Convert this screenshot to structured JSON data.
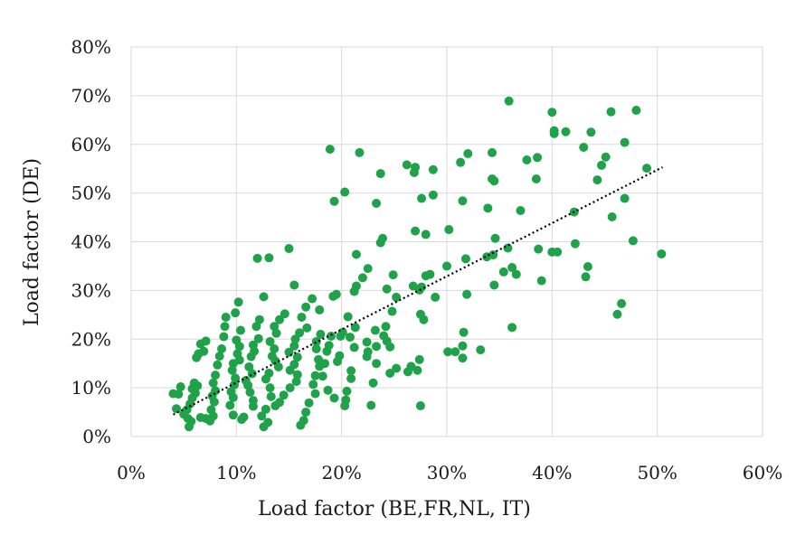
{
  "chart_data": {
    "type": "scatter",
    "title": "",
    "xlabel": "Load factor (BE,FR,NL, IT)",
    "ylabel": "Load factor (DE)",
    "xlim": [
      0,
      0.6
    ],
    "ylim": [
      0,
      0.8
    ],
    "x_ticks": [
      "0%",
      "10%",
      "20%",
      "30%",
      "40%",
      "50%",
      "60%"
    ],
    "y_ticks": [
      "0%",
      "10%",
      "20%",
      "30%",
      "40%",
      "50%",
      "60%",
      "70%",
      "80%"
    ],
    "grid": true,
    "marker_color": "#1fa24a",
    "trendline": {
      "style": "dotted",
      "color": "#000000",
      "x": [
        0.04,
        0.505
      ],
      "y": [
        0.045,
        0.553
      ]
    },
    "points": [
      [
        0.359,
        0.689
      ],
      [
        0.4,
        0.666
      ],
      [
        0.456,
        0.667
      ],
      [
        0.48,
        0.67
      ],
      [
        0.402,
        0.628
      ],
      [
        0.402,
        0.622
      ],
      [
        0.413,
        0.626
      ],
      [
        0.437,
        0.625
      ],
      [
        0.43,
        0.594
      ],
      [
        0.469,
        0.604
      ],
      [
        0.451,
        0.574
      ],
      [
        0.447,
        0.557
      ],
      [
        0.443,
        0.527
      ],
      [
        0.49,
        0.551
      ],
      [
        0.376,
        0.568
      ],
      [
        0.386,
        0.573
      ],
      [
        0.385,
        0.529
      ],
      [
        0.343,
        0.583
      ],
      [
        0.32,
        0.581
      ],
      [
        0.313,
        0.563
      ],
      [
        0.287,
        0.548
      ],
      [
        0.27,
        0.553
      ],
      [
        0.262,
        0.558
      ],
      [
        0.269,
        0.542
      ],
      [
        0.217,
        0.583
      ],
      [
        0.189,
        0.59
      ],
      [
        0.237,
        0.54
      ],
      [
        0.343,
        0.529
      ],
      [
        0.345,
        0.525
      ],
      [
        0.287,
        0.496
      ],
      [
        0.276,
        0.489
      ],
      [
        0.203,
        0.502
      ],
      [
        0.193,
        0.483
      ],
      [
        0.233,
        0.479
      ],
      [
        0.315,
        0.484
      ],
      [
        0.339,
        0.469
      ],
      [
        0.37,
        0.464
      ],
      [
        0.421,
        0.461
      ],
      [
        0.457,
        0.451
      ],
      [
        0.469,
        0.489
      ],
      [
        0.302,
        0.425
      ],
      [
        0.27,
        0.422
      ],
      [
        0.28,
        0.415
      ],
      [
        0.237,
        0.398
      ],
      [
        0.239,
        0.407
      ],
      [
        0.214,
        0.374
      ],
      [
        0.346,
        0.407
      ],
      [
        0.358,
        0.387
      ],
      [
        0.387,
        0.385
      ],
      [
        0.4,
        0.379
      ],
      [
        0.405,
        0.379
      ],
      [
        0.422,
        0.396
      ],
      [
        0.434,
        0.349
      ],
      [
        0.432,
        0.328
      ],
      [
        0.477,
        0.402
      ],
      [
        0.504,
        0.375
      ],
      [
        0.466,
        0.273
      ],
      [
        0.462,
        0.251
      ],
      [
        0.362,
        0.347
      ],
      [
        0.366,
        0.333
      ],
      [
        0.354,
        0.338
      ],
      [
        0.344,
        0.373
      ],
      [
        0.338,
        0.369
      ],
      [
        0.345,
        0.311
      ],
      [
        0.39,
        0.32
      ],
      [
        0.3,
        0.35
      ],
      [
        0.318,
        0.365
      ],
      [
        0.319,
        0.292
      ],
      [
        0.284,
        0.333
      ],
      [
        0.28,
        0.33
      ],
      [
        0.276,
        0.307
      ],
      [
        0.274,
        0.301
      ],
      [
        0.268,
        0.309
      ],
      [
        0.289,
        0.286
      ],
      [
        0.249,
        0.332
      ],
      [
        0.252,
        0.286
      ],
      [
        0.243,
        0.303
      ],
      [
        0.225,
        0.345
      ],
      [
        0.22,
        0.326
      ],
      [
        0.214,
        0.309
      ],
      [
        0.212,
        0.298
      ],
      [
        0.195,
        0.292
      ],
      [
        0.192,
        0.288
      ],
      [
        0.15,
        0.386
      ],
      [
        0.12,
        0.366
      ],
      [
        0.131,
        0.367
      ],
      [
        0.155,
        0.311
      ],
      [
        0.126,
        0.287
      ],
      [
        0.362,
        0.224
      ],
      [
        0.316,
        0.214
      ],
      [
        0.332,
        0.178
      ],
      [
        0.315,
        0.186
      ],
      [
        0.308,
        0.174
      ],
      [
        0.315,
        0.161
      ],
      [
        0.301,
        0.174
      ],
      [
        0.278,
        0.24
      ],
      [
        0.275,
        0.251
      ],
      [
        0.274,
        0.158
      ],
      [
        0.266,
        0.144
      ],
      [
        0.263,
        0.133
      ],
      [
        0.272,
        0.136
      ],
      [
        0.275,
        0.063
      ],
      [
        0.248,
        0.257
      ],
      [
        0.242,
        0.226
      ],
      [
        0.232,
        0.218
      ],
      [
        0.224,
        0.194
      ],
      [
        0.225,
        0.174
      ],
      [
        0.224,
        0.164
      ],
      [
        0.233,
        0.185
      ],
      [
        0.24,
        0.207
      ],
      [
        0.243,
        0.196
      ],
      [
        0.246,
        0.184
      ],
      [
        0.252,
        0.14
      ],
      [
        0.246,
        0.13
      ],
      [
        0.233,
        0.15
      ],
      [
        0.23,
        0.11
      ],
      [
        0.228,
        0.064
      ],
      [
        0.206,
        0.246
      ],
      [
        0.213,
        0.224
      ],
      [
        0.201,
        0.214
      ],
      [
        0.199,
        0.206
      ],
      [
        0.208,
        0.204
      ],
      [
        0.212,
        0.183
      ],
      [
        0.198,
        0.166
      ],
      [
        0.196,
        0.154
      ],
      [
        0.209,
        0.135
      ],
      [
        0.209,
        0.119
      ],
      [
        0.205,
        0.093
      ],
      [
        0.204,
        0.075
      ],
      [
        0.203,
        0.063
      ],
      [
        0.193,
        0.079
      ],
      [
        0.187,
        0.095
      ],
      [
        0.182,
        0.124
      ],
      [
        0.184,
        0.15
      ],
      [
        0.186,
        0.175
      ],
      [
        0.188,
        0.187
      ],
      [
        0.19,
        0.206
      ],
      [
        0.18,
        0.21
      ],
      [
        0.176,
        0.195
      ],
      [
        0.176,
        0.18
      ],
      [
        0.178,
        0.158
      ],
      [
        0.179,
        0.144
      ],
      [
        0.175,
        0.125
      ],
      [
        0.173,
        0.107
      ],
      [
        0.175,
        0.088
      ],
      [
        0.169,
        0.069
      ],
      [
        0.166,
        0.05
      ],
      [
        0.164,
        0.033
      ],
      [
        0.161,
        0.023
      ],
      [
        0.179,
        0.26
      ],
      [
        0.172,
        0.283
      ],
      [
        0.166,
        0.266
      ],
      [
        0.162,
        0.245
      ],
      [
        0.167,
        0.223
      ],
      [
        0.16,
        0.213
      ],
      [
        0.156,
        0.2
      ],
      [
        0.155,
        0.186
      ],
      [
        0.15,
        0.173
      ],
      [
        0.158,
        0.163
      ],
      [
        0.155,
        0.148
      ],
      [
        0.151,
        0.136
      ],
      [
        0.158,
        0.127
      ],
      [
        0.157,
        0.113
      ],
      [
        0.151,
        0.1
      ],
      [
        0.145,
        0.085
      ],
      [
        0.141,
        0.07
      ],
      [
        0.137,
        0.063
      ],
      [
        0.146,
        0.252
      ],
      [
        0.141,
        0.24
      ],
      [
        0.136,
        0.226
      ],
      [
        0.138,
        0.212
      ],
      [
        0.132,
        0.195
      ],
      [
        0.136,
        0.18
      ],
      [
        0.134,
        0.165
      ],
      [
        0.137,
        0.155
      ],
      [
        0.14,
        0.143
      ],
      [
        0.131,
        0.13
      ],
      [
        0.128,
        0.118
      ],
      [
        0.132,
        0.1
      ],
      [
        0.133,
        0.082
      ],
      [
        0.128,
        0.056
      ],
      [
        0.124,
        0.042
      ],
      [
        0.13,
        0.029
      ],
      [
        0.126,
        0.02
      ],
      [
        0.122,
        0.24
      ],
      [
        0.119,
        0.226
      ],
      [
        0.121,
        0.201
      ],
      [
        0.116,
        0.188
      ],
      [
        0.117,
        0.175
      ],
      [
        0.114,
        0.164
      ],
      [
        0.112,
        0.143
      ],
      [
        0.115,
        0.129
      ],
      [
        0.109,
        0.115
      ],
      [
        0.111,
        0.105
      ],
      [
        0.113,
        0.091
      ],
      [
        0.116,
        0.074
      ],
      [
        0.116,
        0.062
      ],
      [
        0.107,
        0.04
      ],
      [
        0.105,
        0.035
      ],
      [
        0.104,
        0.218
      ],
      [
        0.1,
        0.198
      ],
      [
        0.103,
        0.185
      ],
      [
        0.101,
        0.17
      ],
      [
        0.103,
        0.157
      ],
      [
        0.097,
        0.15
      ],
      [
        0.096,
        0.136
      ],
      [
        0.099,
        0.12
      ],
      [
        0.098,
        0.106
      ],
      [
        0.095,
        0.092
      ],
      [
        0.097,
        0.08
      ],
      [
        0.094,
        0.064
      ],
      [
        0.097,
        0.044
      ],
      [
        0.099,
        0.254
      ],
      [
        0.102,
        0.276
      ],
      [
        0.09,
        0.245
      ],
      [
        0.089,
        0.226
      ],
      [
        0.088,
        0.205
      ],
      [
        0.086,
        0.18
      ],
      [
        0.084,
        0.165
      ],
      [
        0.082,
        0.147
      ],
      [
        0.08,
        0.126
      ],
      [
        0.078,
        0.11
      ],
      [
        0.08,
        0.094
      ],
      [
        0.077,
        0.083
      ],
      [
        0.079,
        0.071
      ],
      [
        0.076,
        0.055
      ],
      [
        0.078,
        0.042
      ],
      [
        0.075,
        0.032
      ],
      [
        0.071,
        0.196
      ],
      [
        0.066,
        0.19
      ],
      [
        0.069,
        0.175
      ],
      [
        0.064,
        0.17
      ],
      [
        0.062,
        0.162
      ],
      [
        0.06,
        0.11
      ],
      [
        0.063,
        0.104
      ],
      [
        0.061,
        0.089
      ],
      [
        0.058,
        0.079
      ],
      [
        0.056,
        0.067
      ],
      [
        0.053,
        0.055
      ],
      [
        0.05,
        0.046
      ],
      [
        0.054,
        0.037
      ],
      [
        0.057,
        0.031
      ],
      [
        0.055,
        0.02
      ],
      [
        0.058,
        0.098
      ],
      [
        0.047,
        0.102
      ],
      [
        0.045,
        0.087
      ],
      [
        0.043,
        0.057
      ],
      [
        0.04,
        0.088
      ],
      [
        0.066,
        0.039
      ],
      [
        0.071,
        0.037
      ]
    ]
  }
}
